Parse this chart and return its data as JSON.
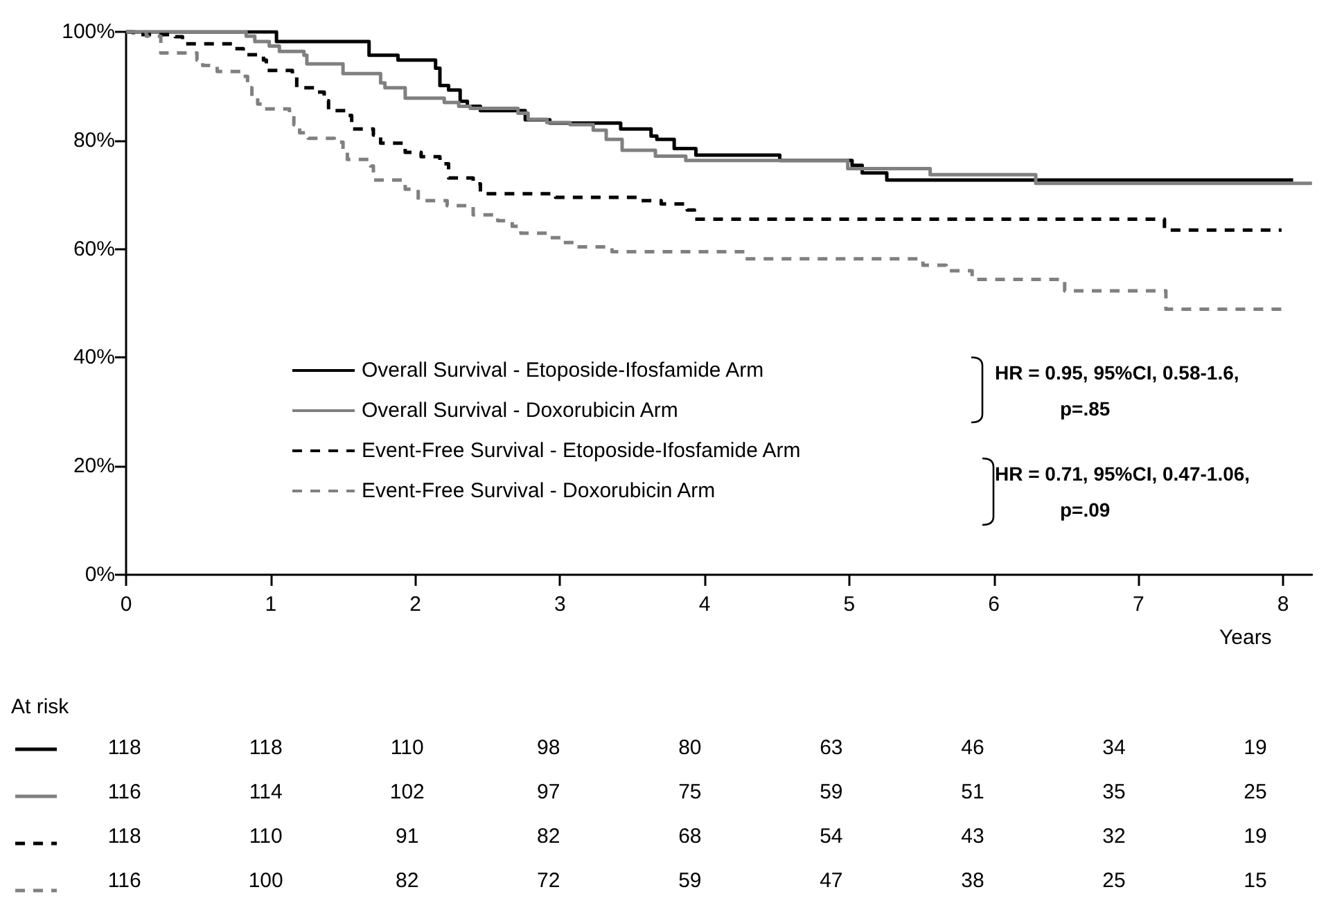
{
  "chart_data": [
    {
      "type": "step",
      "xlabel": "Years",
      "xlim": [
        0,
        8.2
      ],
      "xticks": [
        0,
        1,
        2,
        3,
        4,
        5,
        6,
        7,
        8
      ],
      "ylim": [
        0,
        100
      ],
      "yticks": [
        {
          "value": 0,
          "label": "0%"
        },
        {
          "value": 20,
          "label": "20%"
        },
        {
          "value": 40,
          "label": "40%"
        },
        {
          "value": 60,
          "label": "60%"
        },
        {
          "value": 80,
          "label": "80%"
        },
        {
          "value": 100,
          "label": "100%"
        }
      ],
      "grid": false,
      "legend": "bottom",
      "annotations": [
        "HR = 0.95, 95%CI, 0.58-1.6,",
        "p=.85",
        "HR = 0.71, 95%CI, 0.47-1.06,",
        "p=.09"
      ],
      "series": [
        {
          "name": "Overall Survival - Etoposide-Ifosfamide Arm",
          "color": "#000000",
          "line_style": "solid",
          "x": [
            0,
            1.04,
            1.68,
            1.88,
            2.14,
            2.17,
            2.23,
            2.31,
            2.36,
            2.45,
            2.76,
            2.93,
            3.42,
            3.63,
            3.67,
            3.79,
            3.94,
            4.52,
            5.02,
            5.09,
            5.26,
            8.07
          ],
          "values": [
            100,
            98.2,
            95.7,
            94.8,
            93.3,
            90.1,
            89.3,
            87.2,
            86.3,
            85.5,
            83.8,
            83.2,
            82.1,
            80.8,
            80.2,
            78.5,
            77.3,
            76.3,
            75.4,
            74.0,
            72.7,
            72.7
          ]
        },
        {
          "name": "Overall Survival - Doxorubicin Arm",
          "color": "#808080",
          "line_style": "solid",
          "x": [
            0,
            0.83,
            0.89,
            0.99,
            1.06,
            1.23,
            1.25,
            1.5,
            1.76,
            1.79,
            1.93,
            2.2,
            2.3,
            2.38,
            2.71,
            2.78,
            2.91,
            3.07,
            3.23,
            3.32,
            3.43,
            3.66,
            3.87,
            4.99,
            5.56,
            6.29,
            8.2
          ],
          "values": [
            100,
            99.2,
            98.2,
            97.4,
            96.4,
            95.7,
            94.1,
            92.3,
            90.6,
            89.7,
            87.8,
            87.0,
            86.3,
            85.9,
            85.0,
            83.9,
            83.3,
            82.9,
            81.9,
            80.2,
            78.2,
            77.1,
            76.3,
            74.8,
            73.7,
            72.1,
            72.1
          ]
        },
        {
          "name": "Event-Free Survival - Etoposide-Ifosfamide Arm",
          "color": "#000000",
          "line_style": "dashed",
          "x": [
            0,
            0.05,
            0.34,
            0.39,
            0.75,
            0.81,
            0.95,
            0.97,
            1.15,
            1.18,
            1.32,
            1.37,
            1.4,
            1.53,
            1.56,
            1.71,
            1.76,
            1.93,
            2.04,
            2.17,
            2.23,
            2.4,
            2.45,
            2.97,
            3.55,
            3.7,
            3.88,
            3.93,
            7.18,
            7.99
          ],
          "values": [
            100,
            99.5,
            99.1,
            97.8,
            96.9,
            95.8,
            94.8,
            92.9,
            91.8,
            89.7,
            88.9,
            87.3,
            85.5,
            84.6,
            82.1,
            81.0,
            79.5,
            77.8,
            77.0,
            75.7,
            73.1,
            72.0,
            70.2,
            69.5,
            68.9,
            68.3,
            67.2,
            65.5,
            63.5,
            63.5
          ]
        },
        {
          "name": "Event-Free Survival - Doxorubicin Arm",
          "color": "#808080",
          "line_style": "dashed",
          "x": [
            0,
            0.14,
            0.24,
            0.49,
            0.53,
            0.63,
            0.8,
            0.84,
            0.87,
            0.91,
            0.94,
            1.13,
            1.16,
            1.2,
            1.26,
            1.44,
            1.5,
            1.53,
            1.69,
            1.71,
            1.93,
            2.02,
            2.22,
            2.4,
            2.57,
            2.67,
            2.73,
            2.91,
            3.02,
            3.1,
            3.36,
            4.28,
            5.51,
            5.67,
            5.85,
            6.49,
            7.19,
            7.99
          ],
          "values": [
            100,
            99.2,
            96.1,
            94.8,
            93.8,
            92.7,
            91.8,
            89.7,
            87.9,
            86.7,
            85.8,
            85.0,
            82.9,
            81.4,
            80.4,
            79.7,
            77.8,
            76.5,
            75.3,
            72.7,
            71.0,
            68.9,
            68.0,
            66.3,
            65.2,
            64.2,
            62.9,
            62.1,
            61.2,
            60.4,
            59.5,
            58.2,
            57.0,
            56.0,
            54.4,
            52.3,
            48.9,
            48.9
          ]
        }
      ]
    },
    {
      "type": "heatmap",
      "title": "At risk",
      "categories": [
        null,
        null,
        null,
        null,
        null,
        null,
        null,
        null,
        null
      ],
      "y_categories": [
        null,
        null,
        null,
        null
      ],
      "data_labels": true,
      "cells": [
        [
          118,
          118,
          110,
          98,
          80,
          63,
          46,
          34,
          19
        ],
        [
          116,
          114,
          102,
          97,
          75,
          59,
          51,
          35,
          25
        ],
        [
          118,
          110,
          91,
          82,
          68,
          54,
          43,
          32,
          19
        ],
        [
          116,
          100,
          82,
          72,
          59,
          47,
          38,
          25,
          15
        ]
      ]
    }
  ]
}
